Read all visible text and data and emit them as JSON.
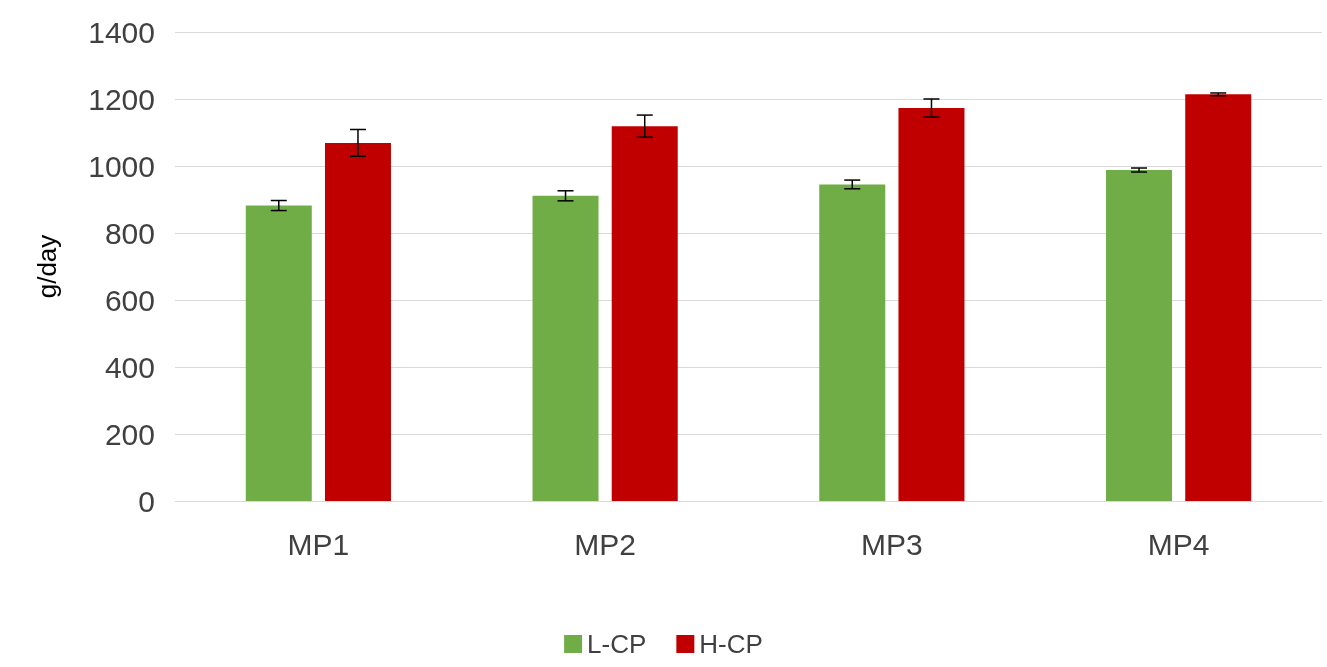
{
  "chart_data": {
    "type": "bar",
    "ylabel": "g/day",
    "categories": [
      "MP1",
      "MP2",
      "MP3",
      "MP4"
    ],
    "series": [
      {
        "name": "L-CP",
        "color": "#70ad47",
        "values": [
          882,
          911,
          945,
          988
        ],
        "errors": [
          15,
          15,
          13,
          6
        ]
      },
      {
        "name": "H-CP",
        "color": "#c00000",
        "values": [
          1069,
          1119,
          1173,
          1214
        ],
        "errors": [
          40,
          33,
          27,
          4
        ]
      }
    ],
    "ylim": [
      0,
      1400
    ],
    "yticks": [
      0,
      200,
      400,
      600,
      800,
      1000,
      1200,
      1400
    ],
    "grid": "y",
    "legend": "bottom"
  }
}
